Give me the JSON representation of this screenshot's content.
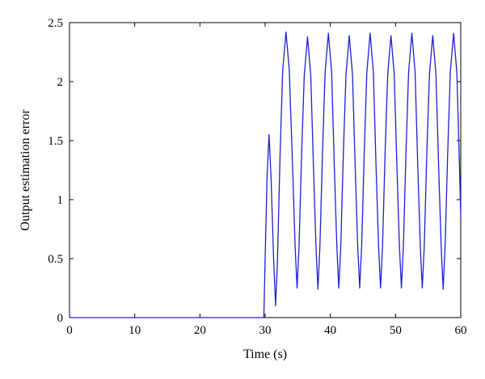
{
  "chart_data": {
    "type": "line",
    "title": "",
    "xlabel": "Time (s)",
    "ylabel": "Output estimation error",
    "xlim": [
      0,
      60
    ],
    "ylim": [
      0,
      2.5
    ],
    "xticks": [
      0,
      10,
      20,
      30,
      40,
      50,
      60
    ],
    "yticks": [
      0,
      0.5,
      1,
      1.5,
      2,
      2.5
    ],
    "xtick_labels": [
      "0",
      "10",
      "20",
      "30",
      "40",
      "50",
      "60"
    ],
    "ytick_labels": [
      "0",
      "0.5",
      "1",
      "1.5",
      "2",
      "2.5"
    ],
    "grid": false,
    "legend": "none",
    "series": [
      {
        "color": "#1f1fcf",
        "points": [
          [
            0,
            0
          ],
          [
            29.8,
            0
          ],
          [
            30.0,
            0.5
          ],
          [
            30.3,
            1.2
          ],
          [
            30.6,
            1.55
          ],
          [
            30.9,
            1.2
          ],
          [
            31.3,
            0.5
          ],
          [
            31.6,
            0.1
          ],
          [
            31.9,
            0.5
          ],
          [
            32.3,
            1.4
          ],
          [
            32.7,
            2.1
          ],
          [
            33.2,
            2.42
          ],
          [
            33.7,
            2.1
          ],
          [
            34.2,
            1.3
          ],
          [
            34.6,
            0.6
          ],
          [
            34.9,
            0.25
          ],
          [
            35.2,
            0.6
          ],
          [
            35.6,
            1.4
          ],
          [
            36.0,
            2.05
          ],
          [
            36.5,
            2.38
          ],
          [
            37.0,
            2.05
          ],
          [
            37.4,
            1.3
          ],
          [
            37.8,
            0.6
          ],
          [
            38.1,
            0.24
          ],
          [
            38.4,
            0.6
          ],
          [
            38.8,
            1.4
          ],
          [
            39.2,
            2.08
          ],
          [
            39.7,
            2.41
          ],
          [
            40.2,
            2.08
          ],
          [
            40.6,
            1.3
          ],
          [
            41.0,
            0.6
          ],
          [
            41.3,
            0.25
          ],
          [
            41.6,
            0.6
          ],
          [
            42.0,
            1.4
          ],
          [
            42.4,
            2.06
          ],
          [
            42.9,
            2.39
          ],
          [
            43.4,
            2.06
          ],
          [
            43.8,
            1.3
          ],
          [
            44.2,
            0.6
          ],
          [
            44.5,
            0.25
          ],
          [
            44.8,
            0.6
          ],
          [
            45.2,
            1.4
          ],
          [
            45.6,
            2.08
          ],
          [
            46.1,
            2.41
          ],
          [
            46.6,
            2.08
          ],
          [
            47.0,
            1.3
          ],
          [
            47.4,
            0.6
          ],
          [
            47.7,
            0.25
          ],
          [
            48.0,
            0.6
          ],
          [
            48.4,
            1.4
          ],
          [
            48.8,
            2.06
          ],
          [
            49.3,
            2.39
          ],
          [
            49.8,
            2.06
          ],
          [
            50.2,
            1.3
          ],
          [
            50.6,
            0.6
          ],
          [
            50.9,
            0.25
          ],
          [
            51.2,
            0.6
          ],
          [
            51.6,
            1.4
          ],
          [
            52.0,
            2.08
          ],
          [
            52.5,
            2.41
          ],
          [
            53.0,
            2.08
          ],
          [
            53.4,
            1.3
          ],
          [
            53.8,
            0.6
          ],
          [
            54.1,
            0.25
          ],
          [
            54.4,
            0.6
          ],
          [
            54.8,
            1.4
          ],
          [
            55.2,
            2.06
          ],
          [
            55.7,
            2.39
          ],
          [
            56.2,
            2.06
          ],
          [
            56.6,
            1.3
          ],
          [
            57.0,
            0.6
          ],
          [
            57.3,
            0.24
          ],
          [
            57.6,
            0.6
          ],
          [
            58.0,
            1.4
          ],
          [
            58.4,
            2.08
          ],
          [
            58.9,
            2.41
          ],
          [
            59.4,
            2.08
          ],
          [
            59.8,
            1.3
          ],
          [
            60.0,
            0.85
          ]
        ]
      }
    ]
  }
}
